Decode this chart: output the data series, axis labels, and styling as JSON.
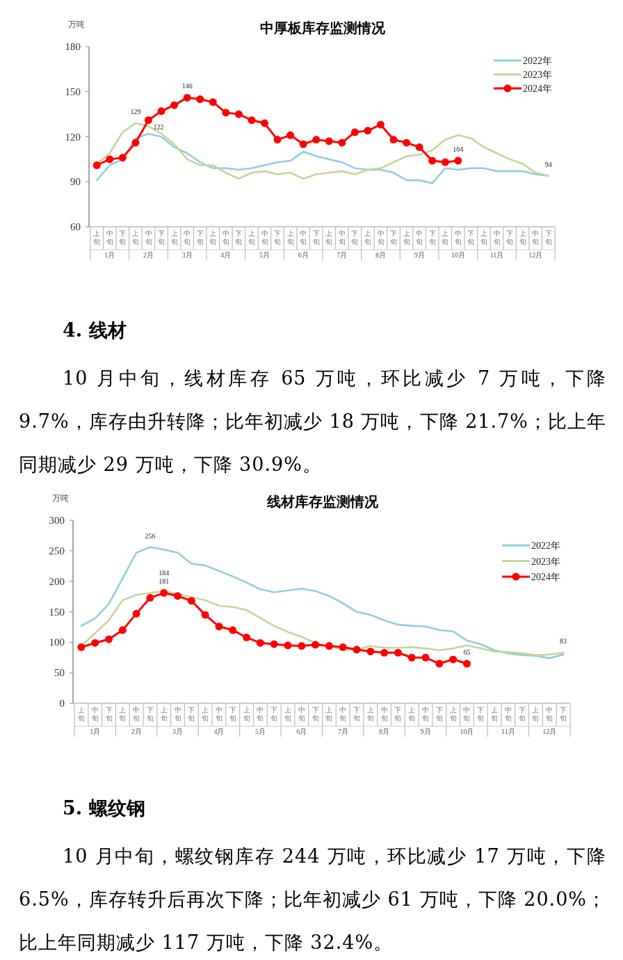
{
  "chart_data": [
    {
      "type": "line",
      "title": "中厚板库存监测情况",
      "ylabel": "万吨",
      "categories": [
        "上旬",
        "中旬",
        "下旬",
        "上旬",
        "中旬",
        "下旬",
        "上旬",
        "中旬",
        "下旬",
        "上旬",
        "中旬",
        "下旬",
        "上旬",
        "中旬",
        "下旬",
        "上旬",
        "中旬",
        "下旬",
        "上旬",
        "中旬",
        "下旬",
        "上旬",
        "中旬",
        "下旬",
        "上旬",
        "中旬",
        "下旬",
        "上旬",
        "中旬",
        "下旬",
        "上旬",
        "中旬",
        "下旬",
        "上旬",
        "中旬",
        "下旬"
      ],
      "ylim": [
        60,
        180
      ],
      "yticks": [
        60,
        90,
        120,
        150,
        180
      ],
      "legend": "top right",
      "annotations": [
        "1月",
        "2月",
        "3月",
        "4月",
        "5月",
        "6月",
        "7月",
        "8月",
        "9月",
        "10月",
        "11月",
        "12月"
      ],
      "series": [
        {
          "name": "2022年",
          "color": "#92cddc",
          "marker": "none",
          "values": [
            91,
            101,
            105,
            119,
            122,
            120,
            113,
            109,
            103,
            99,
            99,
            98,
            99,
            101,
            103,
            104,
            110,
            107,
            105,
            103,
            99,
            98,
            98,
            96,
            91,
            91,
            89,
            99,
            98,
            99,
            99,
            97,
            97,
            97,
            95,
            94
          ],
          "value_labels": [
            null,
            null,
            null,
            null,
            "122",
            null,
            null,
            null,
            null,
            null,
            null,
            null,
            null,
            null,
            null,
            null,
            null,
            null,
            null,
            null,
            null,
            null,
            null,
            null,
            null,
            null,
            null,
            null,
            null,
            null,
            null,
            null,
            null,
            null,
            null,
            null
          ]
        },
        {
          "name": "2023年",
          "color": "#c3d69b",
          "marker": "none",
          "values": [
            102,
            109,
            123,
            129,
            127,
            122,
            115,
            105,
            101,
            101,
            96,
            92,
            96,
            97,
            95,
            96,
            92,
            95,
            96,
            97,
            95,
            98,
            99,
            103,
            107,
            108,
            111,
            118,
            121,
            119,
            113,
            109,
            105,
            102,
            96,
            94
          ],
          "value_labels": [
            null,
            null,
            null,
            "129",
            null,
            null,
            null,
            null,
            null,
            null,
            null,
            null,
            null,
            null,
            null,
            null,
            null,
            null,
            null,
            null,
            null,
            null,
            null,
            null,
            null,
            null,
            null,
            null,
            null,
            null,
            null,
            null,
            null,
            null,
            null,
            "94"
          ]
        },
        {
          "name": "2024年",
          "color": "#ff0000",
          "marker": "circle",
          "values": [
            101,
            105,
            106,
            116,
            131,
            137,
            141,
            146,
            145,
            143,
            136,
            135,
            131,
            129,
            118,
            121,
            115,
            118,
            117,
            116,
            123,
            124,
            128,
            118,
            116,
            113,
            104,
            103,
            104,
            null,
            null,
            null,
            null,
            null,
            null,
            null
          ],
          "value_labels": [
            null,
            null,
            null,
            null,
            null,
            null,
            null,
            "146",
            null,
            null,
            null,
            null,
            null,
            null,
            null,
            null,
            null,
            null,
            null,
            null,
            null,
            null,
            null,
            null,
            null,
            null,
            null,
            null,
            "104",
            null,
            null,
            null,
            null,
            null,
            null,
            null
          ]
        }
      ]
    },
    {
      "type": "other",
      "title": "4. 线材",
      "annotations": [
        "10 月中旬，线材库存 65 万吨，环比减少 7 万吨，下降 9.7%，库存由升转降；比年初减少 18 万吨，下降 21.7%；比上年同期减少 29 万吨，下降 30.9%。"
      ]
    },
    {
      "type": "line",
      "title": "线材库存监测情况",
      "ylabel": "万吨",
      "categories": [
        "上旬",
        "中旬",
        "下旬",
        "上旬",
        "中旬",
        "下旬",
        "上旬",
        "中旬",
        "下旬",
        "上旬",
        "中旬",
        "下旬",
        "上旬",
        "中旬",
        "下旬",
        "上旬",
        "中旬",
        "下旬",
        "上旬",
        "中旬",
        "下旬",
        "上旬",
        "中旬",
        "下旬",
        "上旬",
        "中旬",
        "下旬",
        "上旬",
        "中旬",
        "下旬",
        "上旬",
        "中旬",
        "下旬",
        "上旬",
        "中旬",
        "下旬"
      ],
      "ylim": [
        0,
        300
      ],
      "yticks": [
        0,
        50,
        100,
        150,
        200,
        250,
        300
      ],
      "legend": "top right",
      "annotations": [
        "1月",
        "2月",
        "3月",
        "4月",
        "5月",
        "6月",
        "7月",
        "8月",
        "9月",
        "10月",
        "11月",
        "12月"
      ],
      "series": [
        {
          "name": "2022年",
          "color": "#92cddc",
          "marker": "none",
          "values": [
            127,
            139,
            163,
            205,
            247,
            256,
            252,
            247,
            229,
            226,
            217,
            208,
            198,
            187,
            182,
            185,
            188,
            184,
            176,
            164,
            150,
            145,
            136,
            129,
            127,
            126,
            120,
            118,
            103,
            97,
            87,
            82,
            79,
            78,
            74,
            80
          ],
          "value_labels": [
            null,
            null,
            null,
            null,
            null,
            "256",
            null,
            null,
            null,
            null,
            null,
            null,
            null,
            null,
            null,
            null,
            null,
            null,
            null,
            null,
            null,
            null,
            null,
            null,
            null,
            null,
            null,
            null,
            null,
            null,
            null,
            null,
            null,
            null,
            null,
            null
          ]
        },
        {
          "name": "2023年",
          "color": "#c3d69b",
          "marker": "none",
          "values": [
            94,
            115,
            136,
            169,
            178,
            181,
            184,
            179,
            174,
            169,
            160,
            158,
            153,
            140,
            127,
            117,
            109,
            99,
            93,
            88,
            88,
            94,
            91,
            91,
            92,
            90,
            87,
            90,
            95,
            90,
            85,
            84,
            82,
            79,
            80,
            83
          ],
          "value_labels": [
            null,
            null,
            null,
            null,
            null,
            null,
            "184",
            null,
            null,
            null,
            null,
            null,
            null,
            null,
            null,
            null,
            null,
            null,
            null,
            null,
            null,
            null,
            null,
            null,
            null,
            null,
            null,
            null,
            null,
            null,
            null,
            null,
            null,
            null,
            null,
            "83"
          ]
        },
        {
          "name": "2024年",
          "color": "#ff0000",
          "marker": "circle",
          "values": [
            92,
            99,
            105,
            120,
            147,
            173,
            181,
            176,
            168,
            145,
            126,
            120,
            108,
            99,
            97,
            95,
            94,
            96,
            94,
            92,
            88,
            85,
            83,
            83,
            75,
            75,
            65,
            72,
            65,
            null,
            null,
            null,
            null,
            null,
            null,
            null
          ],
          "value_labels": [
            null,
            null,
            null,
            null,
            null,
            null,
            "181",
            null,
            null,
            null,
            null,
            null,
            null,
            null,
            null,
            null,
            null,
            null,
            null,
            null,
            null,
            null,
            null,
            null,
            null,
            null,
            null,
            null,
            "65",
            null,
            null,
            null,
            null,
            null,
            null,
            null
          ]
        }
      ]
    },
    {
      "type": "other",
      "title": "5. 螺纹钢",
      "annotations": [
        "10 月中旬，螺纹钢库存 244 万吨，环比减少 17 万吨，下降 6.5%，库存转升后再次下降；比年初减少 61 万吨，下降 20.0%；比上年同期减少 117 万吨，下降 32.4%。"
      ]
    }
  ]
}
